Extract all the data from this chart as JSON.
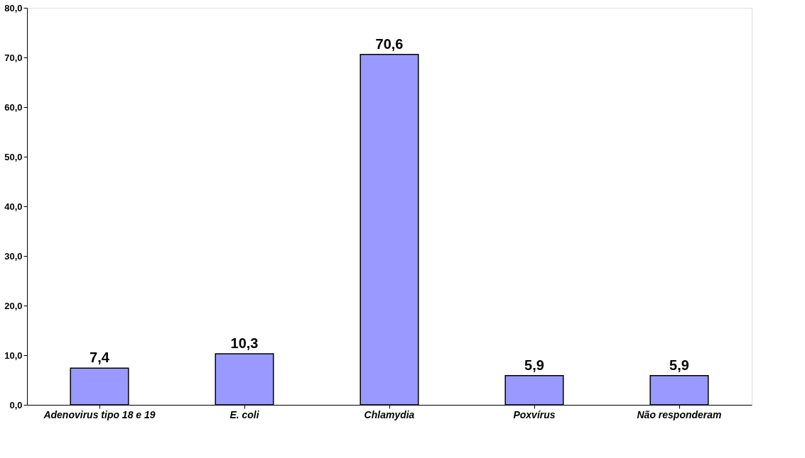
{
  "chart_data": {
    "type": "bar",
    "categories": [
      "Adenovirus tipo 18 e 19",
      "E. coli",
      "Chlamydia",
      "Poxvírus",
      "Não responderam"
    ],
    "values": [
      7.4,
      10.3,
      70.6,
      5.9,
      5.9
    ],
    "value_labels": [
      "7,4",
      "10,3",
      "70,6",
      "5,9",
      "5,9"
    ],
    "color": "#9999ff",
    "ylim": [
      0,
      80
    ],
    "yticks": [
      {
        "value": 0,
        "label": "0,0"
      },
      {
        "value": 10,
        "label": "10,0"
      },
      {
        "value": 20,
        "label": "20,0"
      },
      {
        "value": 30,
        "label": "30,0"
      },
      {
        "value": 40,
        "label": "40,0"
      },
      {
        "value": 50,
        "label": "50,0"
      },
      {
        "value": 60,
        "label": "60,0"
      },
      {
        "value": 70,
        "label": "70,0"
      },
      {
        "value": 80,
        "label": "80,0"
      }
    ],
    "grid": false
  }
}
